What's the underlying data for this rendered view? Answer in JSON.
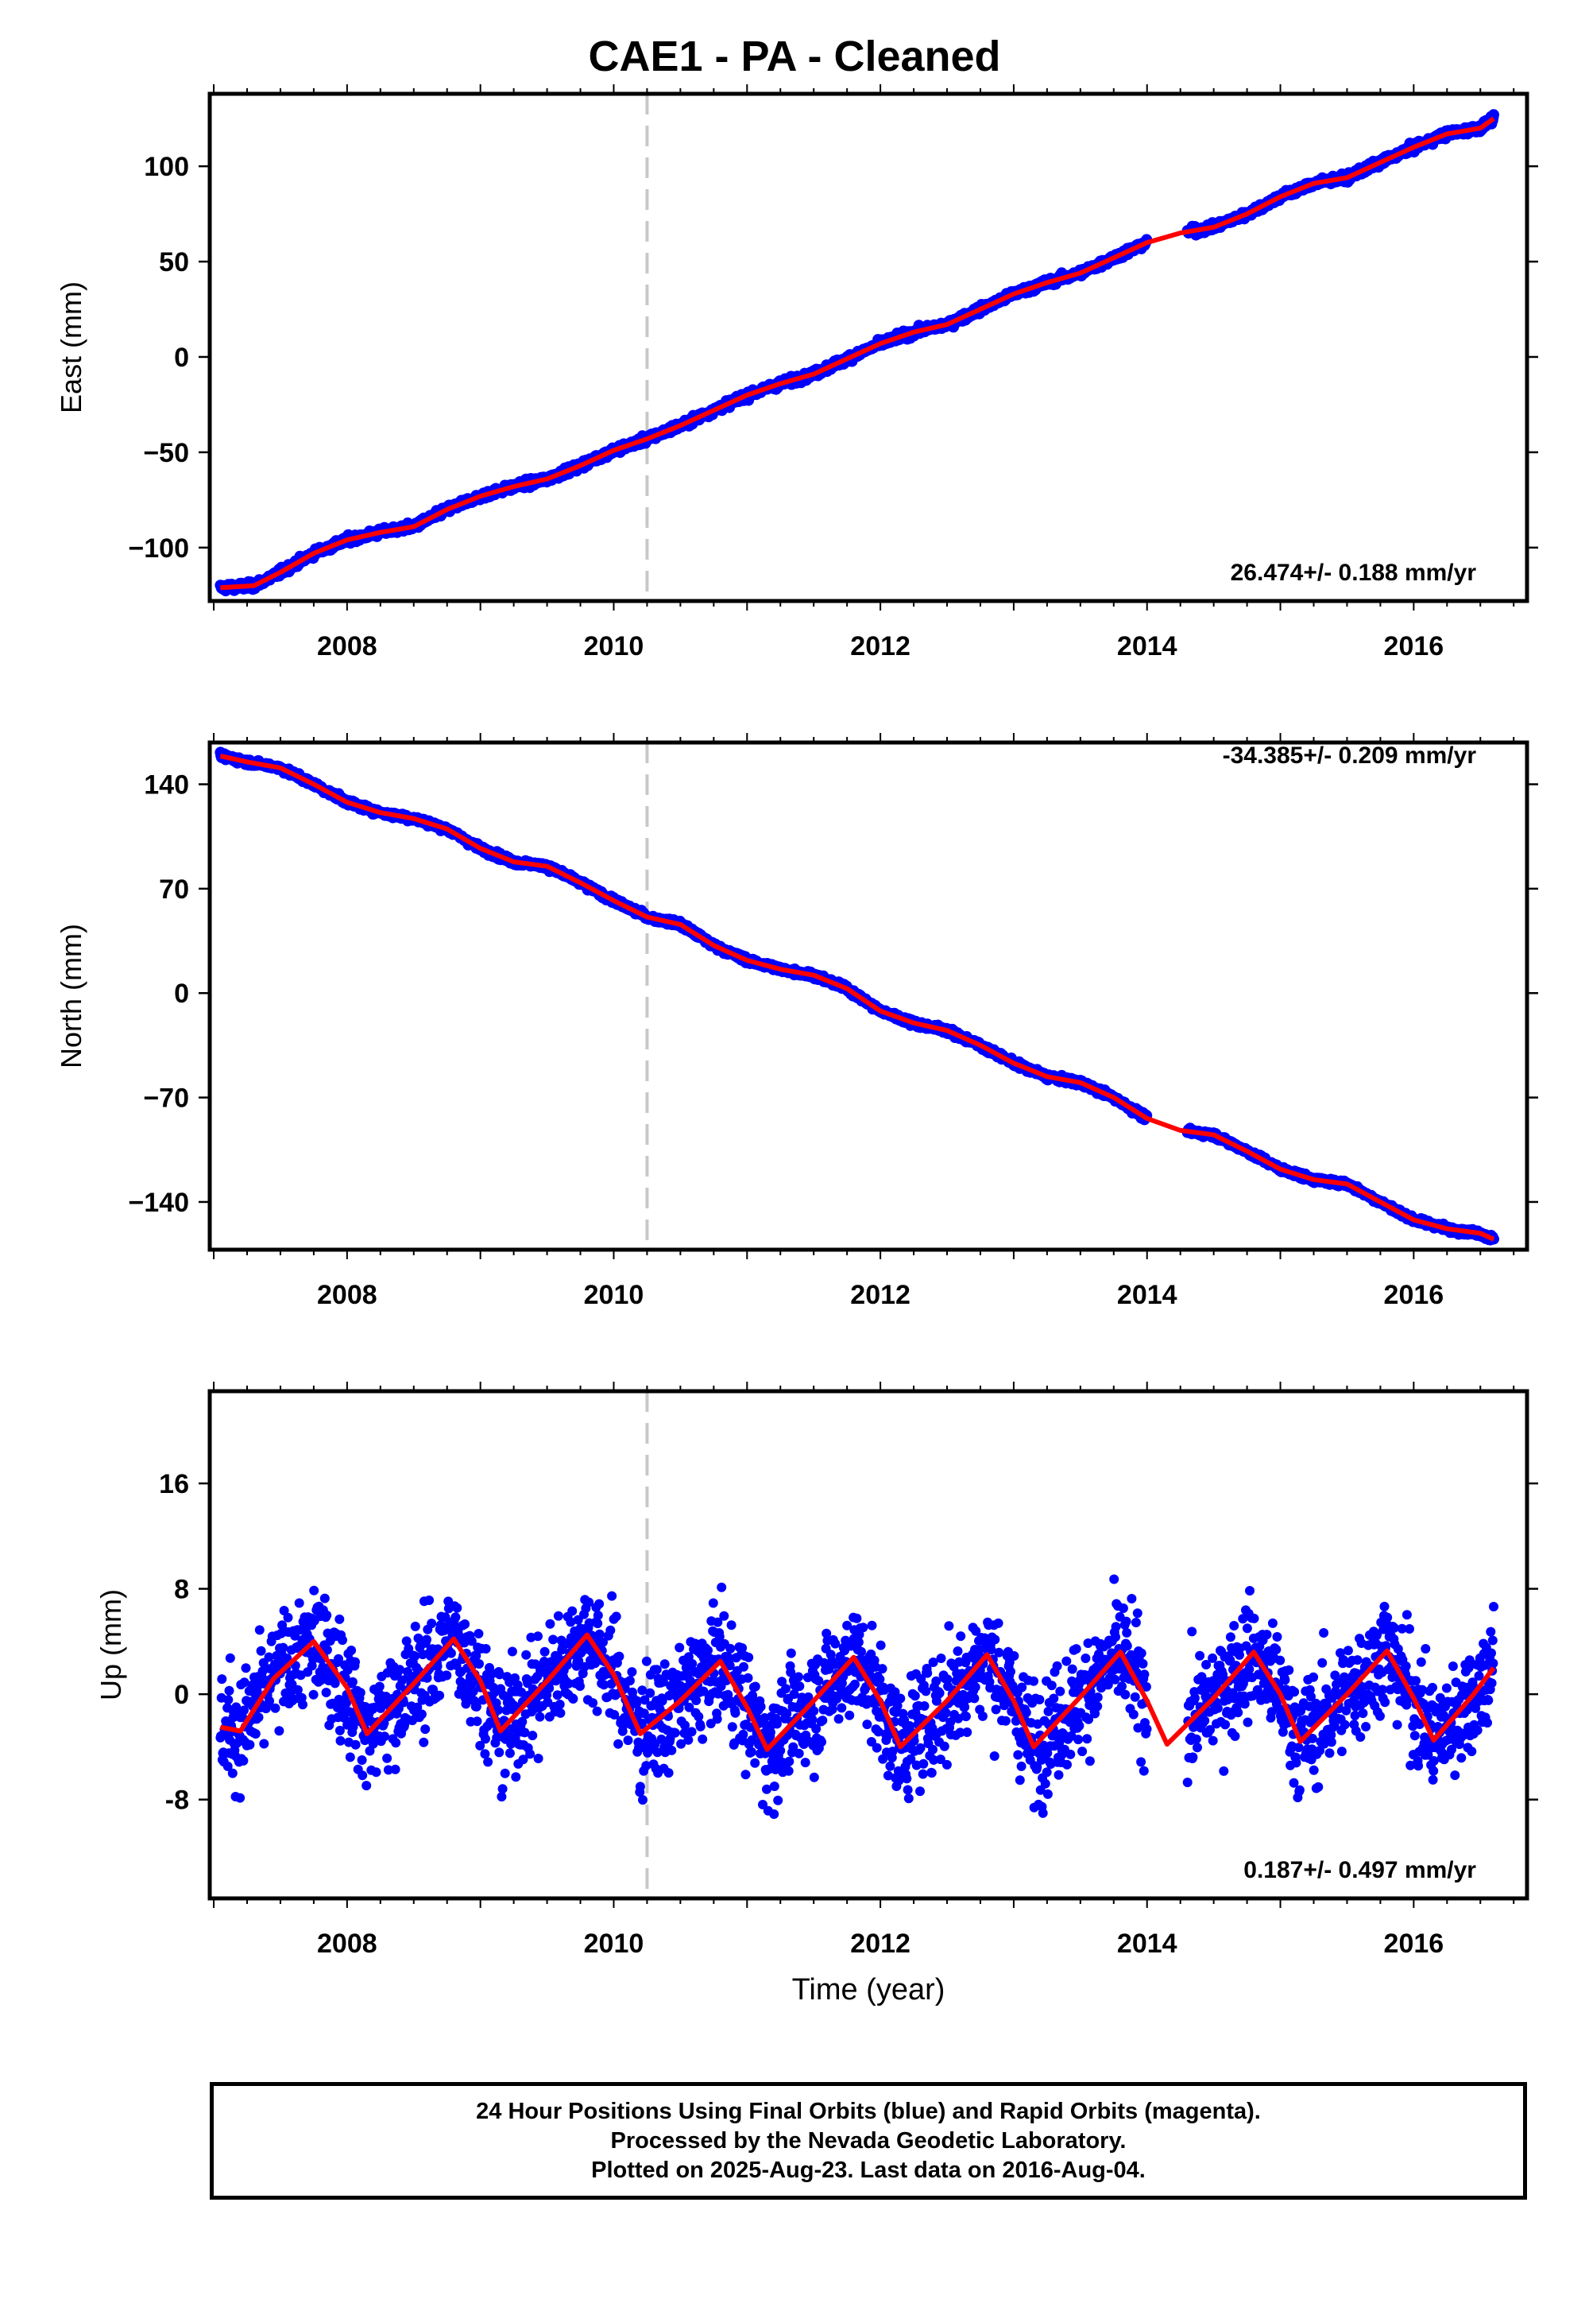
{
  "title": "CAE1  - PA - Cleaned",
  "footer": {
    "line1": "24 Hour Positions Using Final Orbits (blue) and Rapid Orbits (magenta).",
    "line2": "Processed by the Nevada Geodetic Laboratory.",
    "line3": "Plotted on 2025-Aug-23. Last data on 2016-Aug-04."
  },
  "colors": {
    "data_points": "#0000ff",
    "model_line": "#ff0000",
    "event_line": "#c8c8c8",
    "frame": "#000000"
  },
  "chart_data": [
    {
      "type": "scatter",
      "panel": "east",
      "ylabel": "East (mm)",
      "xlim": [
        2006.97,
        2016.85
      ],
      "ylim": [
        -128,
        138
      ],
      "yticks": [
        -100,
        -50,
        0,
        50,
        100
      ],
      "ytick_labels": [
        "−100",
        "−50",
        "0",
        "50",
        "100"
      ],
      "xticks": [
        2008,
        2010,
        2012,
        2014,
        2016
      ],
      "xtick_labels": [
        "2008",
        "2010",
        "2012",
        "2014",
        "2016"
      ],
      "annotation": "26.474+/- 0.188 mm/yr",
      "event_line_x": 2010.25,
      "series": [
        {
          "role": "model",
          "x": [
            2007.05,
            2007.3,
            2007.5,
            2007.75,
            2008.0,
            2008.25,
            2008.5,
            2008.75,
            2009.0,
            2009.25,
            2009.5,
            2009.75,
            2010.0,
            2010.25,
            2010.5,
            2010.75,
            2011.0,
            2011.25,
            2011.5,
            2011.75,
            2012.0,
            2012.25,
            2012.5,
            2012.75,
            2013.0,
            2013.25,
            2013.5,
            2013.75,
            2014.0,
            2014.25,
            2014.5,
            2014.75,
            2015.0,
            2015.25,
            2015.5,
            2015.75,
            2016.0,
            2016.25,
            2016.5,
            2016.6
          ],
          "y": [
            -121,
            -120,
            -113,
            -103,
            -96,
            -92,
            -89,
            -80,
            -73,
            -68,
            -64,
            -57,
            -49,
            -43,
            -36,
            -28,
            -20,
            -14,
            -9,
            -1,
            7,
            13,
            17,
            25,
            33,
            39,
            44,
            52,
            60,
            65,
            68,
            75,
            84,
            91,
            94,
            102,
            110,
            117,
            120,
            125
          ]
        }
      ]
    },
    {
      "type": "scatter",
      "panel": "north",
      "ylabel": "North (mm)",
      "xlim": [
        2006.97,
        2016.85
      ],
      "ylim": [
        -172,
        168
      ],
      "yticks": [
        -140,
        -70,
        0,
        70,
        140
      ],
      "ytick_labels": [
        "−140",
        "−70",
        "0",
        "70",
        "140"
      ],
      "xticks": [
        2008,
        2010,
        2012,
        2014,
        2016
      ],
      "xtick_labels": [
        "2008",
        "2010",
        "2012",
        "2014",
        "2016"
      ],
      "annotation": "-34.385+/- 0.209 mm/yr",
      "event_line_x": 2010.25,
      "series": [
        {
          "role": "model",
          "x": [
            2007.05,
            2007.25,
            2007.5,
            2007.75,
            2008.0,
            2008.25,
            2008.5,
            2008.75,
            2009.0,
            2009.25,
            2009.5,
            2009.75,
            2010.0,
            2010.25,
            2010.5,
            2010.75,
            2011.0,
            2011.25,
            2011.5,
            2011.75,
            2012.0,
            2012.25,
            2012.5,
            2012.75,
            2013.0,
            2013.25,
            2013.5,
            2013.75,
            2014.0,
            2014.25,
            2014.5,
            2014.75,
            2015.0,
            2015.25,
            2015.5,
            2015.75,
            2016.0,
            2016.25,
            2016.5,
            2016.6
          ],
          "y": [
            159,
            155,
            151,
            140,
            128,
            121,
            117,
            110,
            97,
            88,
            85,
            74,
            62,
            51,
            46,
            32,
            22,
            16,
            12,
            3,
            -12,
            -20,
            -25,
            -35,
            -47,
            -56,
            -60,
            -70,
            -84,
            -92,
            -95,
            -106,
            -118,
            -125,
            -128,
            -140,
            -152,
            -158,
            -161,
            -165
          ]
        }
      ]
    },
    {
      "type": "scatter",
      "panel": "up",
      "ylabel": "Up (mm)",
      "xlabel": "Time (year)",
      "xlim": [
        2006.97,
        2016.85
      ],
      "ylim": [
        -15.5,
        23
      ],
      "yticks": [
        -8,
        0,
        8,
        16
      ],
      "ytick_labels": [
        "-8",
        "0",
        "8",
        "16"
      ],
      "xticks": [
        2008,
        2010,
        2012,
        2014,
        2016
      ],
      "xtick_labels": [
        "2008",
        "2010",
        "2012",
        "2014",
        "2016"
      ],
      "annotation": "0.187+/- 0.497 mm/yr",
      "event_line_x": 2010.25,
      "series": [
        {
          "role": "model",
          "x": [
            2007.05,
            2007.2,
            2007.45,
            2007.75,
            2008.0,
            2008.15,
            2008.5,
            2008.8,
            2009.0,
            2009.15,
            2009.5,
            2009.8,
            2010.0,
            2010.2,
            2010.5,
            2010.8,
            2011.0,
            2011.15,
            2011.5,
            2011.8,
            2012.0,
            2012.15,
            2012.5,
            2012.8,
            2013.0,
            2013.15,
            2013.5,
            2013.8,
            2014.0,
            2014.15,
            2014.5,
            2014.8,
            2015.0,
            2015.15,
            2015.5,
            2015.8,
            2016.0,
            2016.15,
            2016.45,
            2016.6
          ],
          "y": [
            -2.5,
            -2.8,
            1.2,
            4.0,
            0.5,
            -3.0,
            0.8,
            4.2,
            1.0,
            -2.8,
            1.0,
            4.5,
            1.5,
            -3.0,
            -0.5,
            2.5,
            -1.0,
            -4.2,
            -0.5,
            2.8,
            -0.5,
            -4.0,
            -0.5,
            3.0,
            -0.5,
            -4.0,
            -0.2,
            3.2,
            -0.5,
            -3.8,
            -0.3,
            3.2,
            0.0,
            -3.6,
            0.0,
            3.3,
            -0.3,
            -3.5,
            0.0,
            2.0
          ]
        }
      ]
    }
  ]
}
